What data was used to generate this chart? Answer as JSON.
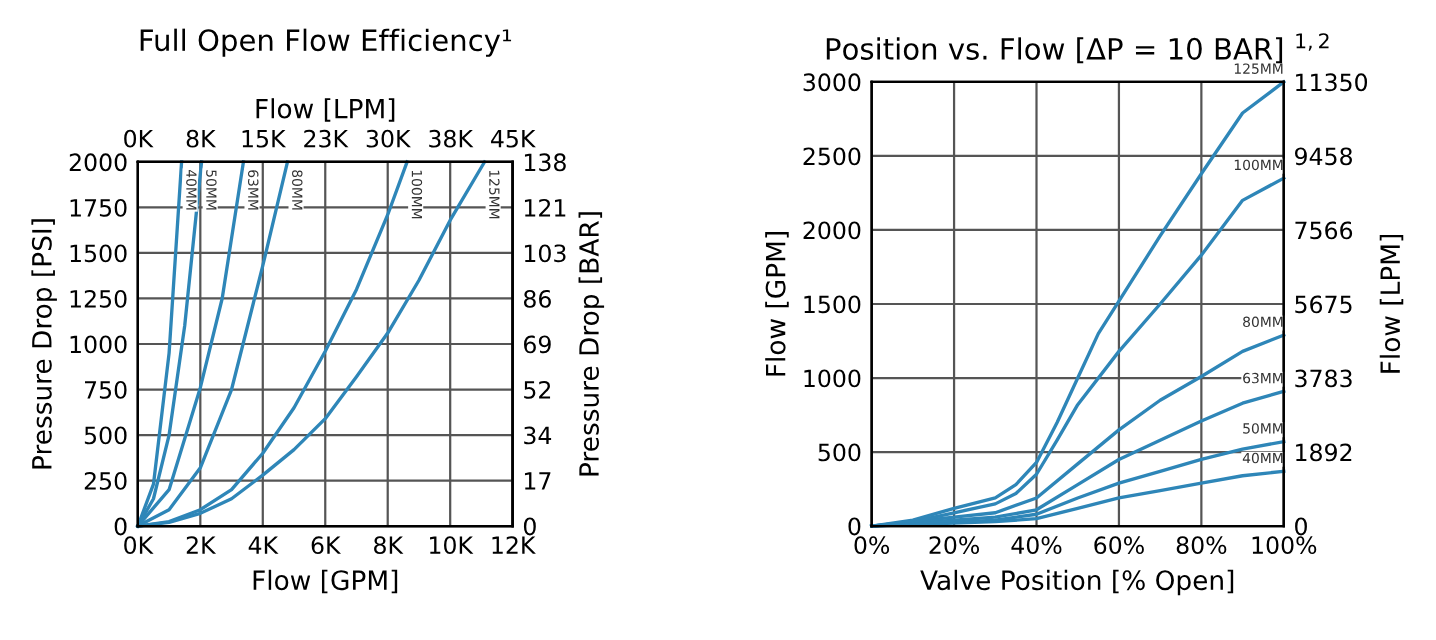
{
  "chart_data": [
    {
      "type": "line",
      "title": "Full Open Flow Efficiency¹",
      "xlabel": "Flow [GPM]",
      "x2label": "Flow [LPM]",
      "ylabel": "Pressure Drop [PSI]",
      "y2label": "Pressure Drop [BAR]",
      "xlim": [
        0,
        12000
      ],
      "xticks": [
        {
          "value": 0,
          "label": "0K"
        },
        {
          "value": 2000,
          "label": "2K"
        },
        {
          "value": 4000,
          "label": "4K"
        },
        {
          "value": 6000,
          "label": "6K"
        },
        {
          "value": 8000,
          "label": "8K"
        },
        {
          "value": 10000,
          "label": "10K"
        },
        {
          "value": 12000,
          "label": "12K"
        }
      ],
      "x2lim": [
        0,
        45000
      ],
      "x2ticks": [
        {
          "value": 0,
          "label": "0K"
        },
        {
          "value": 7500,
          "label": "8K"
        },
        {
          "value": 15000,
          "label": "15K"
        },
        {
          "value": 22500,
          "label": "23K"
        },
        {
          "value": 30000,
          "label": "30K"
        },
        {
          "value": 37500,
          "label": "38K"
        },
        {
          "value": 45000,
          "label": "45K"
        }
      ],
      "ylim": [
        0,
        2000
      ],
      "yticks": [
        0,
        250,
        500,
        750,
        1000,
        1250,
        1500,
        1750,
        2000
      ],
      "y2lim": [
        0,
        138
      ],
      "y2ticks": [
        {
          "value": 0,
          "label": "0"
        },
        {
          "value": 17.25,
          "label": "17"
        },
        {
          "value": 34.5,
          "label": "34"
        },
        {
          "value": 51.75,
          "label": "52"
        },
        {
          "value": 69,
          "label": "69"
        },
        {
          "value": 86.25,
          "label": "86"
        },
        {
          "value": 103.5,
          "label": "103"
        },
        {
          "value": 120.75,
          "label": "121"
        },
        {
          "value": 138,
          "label": "138"
        }
      ],
      "grid": true,
      "legend": false,
      "marker": "none",
      "line_style": "solid",
      "series": [
        {
          "name": "40MM",
          "color": "#2e86b8",
          "x": [
            0,
            500,
            1000,
            1400
          ],
          "values": [
            0,
            230,
            950,
            2000
          ]
        },
        {
          "name": "50MM",
          "color": "#2e86b8",
          "x": [
            0,
            500,
            1000,
            1500,
            2040
          ],
          "values": [
            0,
            150,
            500,
            1100,
            2000
          ]
        },
        {
          "name": "63MM",
          "color": "#2e86b8",
          "x": [
            0,
            1000,
            2000,
            2700,
            3380
          ],
          "values": [
            0,
            200,
            760,
            1250,
            2000
          ]
        },
        {
          "name": "80MM",
          "color": "#2e86b8",
          "x": [
            0,
            1000,
            2000,
            3000,
            4000,
            4790
          ],
          "values": [
            0,
            90,
            320,
            750,
            1430,
            2000
          ]
        },
        {
          "name": "100MM",
          "color": "#2e86b8",
          "x": [
            0,
            1000,
            2000,
            3000,
            4000,
            5000,
            6000,
            7000,
            8000,
            8620
          ],
          "values": [
            0,
            25,
            90,
            200,
            400,
            650,
            960,
            1300,
            1710,
            2000
          ]
        },
        {
          "name": "125MM",
          "color": "#2e86b8",
          "x": [
            0,
            1000,
            2000,
            3000,
            4000,
            5000,
            6000,
            7000,
            8000,
            9000,
            10000,
            11100
          ],
          "values": [
            0,
            20,
            70,
            150,
            280,
            420,
            590,
            820,
            1060,
            1350,
            1680,
            2000
          ]
        }
      ]
    },
    {
      "type": "line",
      "title": "Position vs. Flow [ΔP = 10 BAR] $^{1,2}$",
      "xlabel": "Valve Position [% Open]",
      "ylabel": "Flow [GPM]",
      "y2label": "Flow [LPM]",
      "xlim": [
        0,
        100
      ],
      "xticks": [
        {
          "value": 0,
          "label": "0%"
        },
        {
          "value": 20,
          "label": "20%"
        },
        {
          "value": 40,
          "label": "40%"
        },
        {
          "value": 60,
          "label": "60%"
        },
        {
          "value": 80,
          "label": "80%"
        },
        {
          "value": 100,
          "label": "100%"
        }
      ],
      "ylim": [
        0,
        3000
      ],
      "yticks": [
        0,
        500,
        1000,
        1500,
        2000,
        2500,
        3000
      ],
      "y2lim": [
        0,
        11350
      ],
      "y2ticks": [
        0,
        1892,
        3783,
        5675,
        7566,
        9458,
        11350
      ],
      "grid": true,
      "legend": false,
      "marker": "none",
      "line_style": "solid",
      "series": [
        {
          "name": "40MM",
          "color": "#2e86b8",
          "x": [
            0,
            20,
            30,
            40,
            50,
            60,
            70,
            80,
            90,
            100
          ],
          "values": [
            0,
            20,
            30,
            50,
            120,
            190,
            240,
            290,
            340,
            370
          ]
        },
        {
          "name": "50MM",
          "color": "#2e86b8",
          "x": [
            0,
            20,
            30,
            40,
            50,
            60,
            70,
            80,
            90,
            100
          ],
          "values": [
            0,
            25,
            40,
            80,
            190,
            290,
            370,
            450,
            520,
            570
          ]
        },
        {
          "name": "63MM",
          "color": "#2e86b8",
          "x": [
            0,
            20,
            30,
            40,
            50,
            60,
            70,
            80,
            90,
            100
          ],
          "values": [
            0,
            40,
            60,
            110,
            280,
            450,
            580,
            710,
            830,
            910
          ]
        },
        {
          "name": "80MM",
          "color": "#2e86b8",
          "x": [
            0,
            20,
            30,
            40,
            50,
            60,
            70,
            80,
            90,
            100
          ],
          "values": [
            0,
            60,
            90,
            190,
            420,
            650,
            850,
            1010,
            1180,
            1290
          ]
        },
        {
          "name": "100MM",
          "color": "#2e86b8",
          "x": [
            0,
            10,
            20,
            30,
            35,
            40,
            45,
            50,
            60,
            70,
            80,
            90,
            100
          ],
          "values": [
            0,
            30,
            90,
            150,
            220,
            350,
            580,
            820,
            1180,
            1500,
            1830,
            2200,
            2350
          ]
        },
        {
          "name": "125MM",
          "color": "#2e86b8",
          "x": [
            0,
            10,
            20,
            30,
            35,
            40,
            45,
            50,
            55,
            60,
            70,
            80,
            90,
            100
          ],
          "values": [
            0,
            40,
            120,
            190,
            280,
            430,
            700,
            1000,
            1300,
            1520,
            1960,
            2380,
            2790,
            3000
          ]
        }
      ]
    }
  ]
}
